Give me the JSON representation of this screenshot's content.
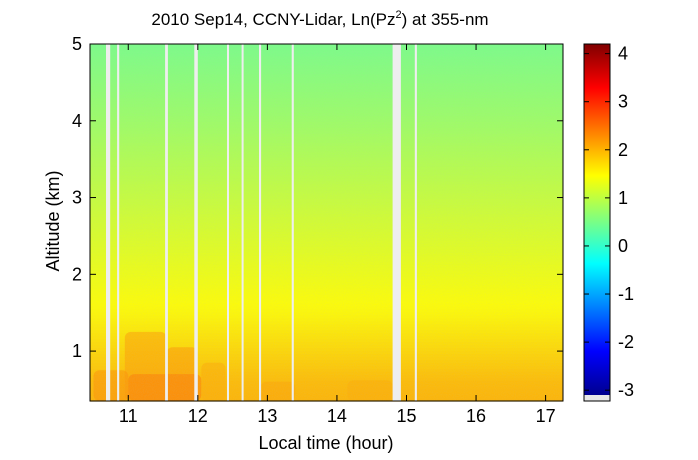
{
  "chart_data": {
    "type": "heatmap",
    "title": "2010 Sep14, CCNY-Lidar, Ln(Pz",
    "title_superscript": "2",
    "title_suffix": ") at 355-nm",
    "xlabel": "Local time (hour)",
    "ylabel": "Altitude (km)",
    "xlim": [
      10.45,
      17.25
    ],
    "ylim": [
      0.35,
      5.0
    ],
    "x_ticks": [
      11,
      12,
      13,
      14,
      15,
      16,
      17
    ],
    "x_tick_labels": [
      "11",
      "12",
      "13",
      "14",
      "15",
      "16",
      "17"
    ],
    "y_ticks": [
      1,
      2,
      3,
      4,
      5
    ],
    "y_tick_labels": [
      "1",
      "2",
      "3",
      "4",
      "5"
    ],
    "colorbar": {
      "colormap": "jet",
      "clim": [
        -3.1,
        4.2
      ],
      "ticks": [
        -3,
        -2,
        -1,
        0,
        1,
        2,
        3,
        4
      ],
      "tick_labels": [
        "-3",
        "-2",
        "-1",
        "0",
        "1",
        "2",
        "3",
        "4"
      ]
    },
    "field_description_levels": [
      {
        "altitude_km": 0.35,
        "value": 2.0
      },
      {
        "altitude_km": 0.6,
        "value": 1.95
      },
      {
        "altitude_km": 1.0,
        "value": 1.75
      },
      {
        "altitude_km": 1.5,
        "value": 1.5
      },
      {
        "altitude_km": 2.0,
        "value": 1.35
      },
      {
        "altitude_km": 3.0,
        "value": 1.05
      },
      {
        "altitude_km": 4.0,
        "value": 0.75
      },
      {
        "altitude_km": 5.0,
        "value": 0.5
      }
    ],
    "data_gaps_hours": [
      [
        10.68,
        10.74
      ],
      [
        10.84,
        10.87
      ],
      [
        11.53,
        11.57
      ],
      [
        11.95,
        12.0
      ],
      [
        12.42,
        12.44
      ],
      [
        12.63,
        12.65
      ],
      [
        12.88,
        12.91
      ],
      [
        13.35,
        13.38
      ],
      [
        14.8,
        14.92
      ],
      [
        15.12,
        15.15
      ]
    ],
    "grid": false
  }
}
